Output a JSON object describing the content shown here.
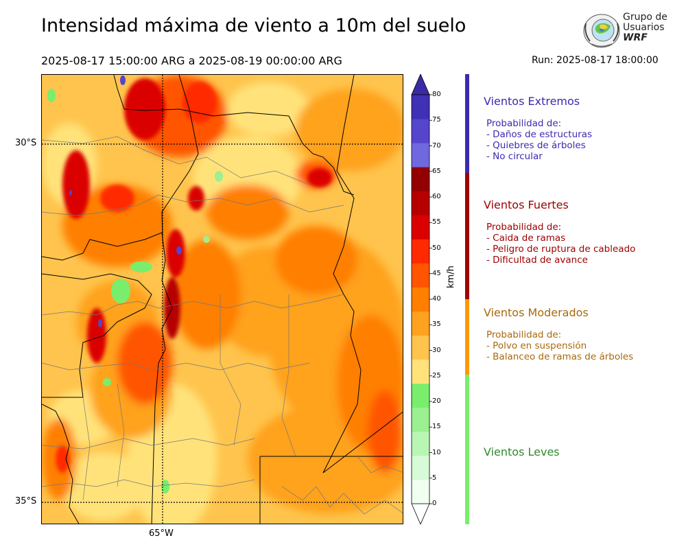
{
  "title": "Intensidad máxima de viento a 10m del suelo",
  "period": "2025-08-17 15:00:00 ARG  a  2025-08-19 00:00:00 ARG",
  "run": "Run: 2025-08-17 18:00:00",
  "logo": {
    "line1": "Grupo de",
    "line2": "Usuarios",
    "line3": "WRF"
  },
  "map": {
    "lat_labels": [
      "30°S",
      "35°S"
    ],
    "lon_labels": [
      "65°W"
    ],
    "ocean_color": "#ffffff"
  },
  "colorbar": {
    "unit": "km/h",
    "ticks": [
      "0",
      "5",
      "10",
      "15",
      "20",
      "25",
      "30",
      "35",
      "40",
      "45",
      "50",
      "55",
      "60",
      "65",
      "70",
      "75",
      "80"
    ],
    "colors": [
      "#f0fff0",
      "#d7fad7",
      "#b9f6b4",
      "#9bf090",
      "#79ee6c",
      "#ffe37a",
      "#ffc44d",
      "#ffa21f",
      "#ff7f00",
      "#ff5500",
      "#ff2a00",
      "#db0000",
      "#b60000",
      "#930000",
      "#7068df",
      "#5544cc",
      "#4030b5"
    ],
    "extend_colors": {
      "low": "#ffffff",
      "high": "#3b2aa8"
    }
  },
  "categories": [
    {
      "title": "Vientos Extremos",
      "color": "#3b2ab0",
      "lines": [
        "Probabilidad de:",
        "- Daños de estructuras",
        "- Quiebres de árboles",
        "- No circular"
      ]
    },
    {
      "title": "Vientos Fuertes",
      "color": "#a00000",
      "lines": [
        "Probabilidad de:",
        "- Caida de ramas",
        "- Peligro de ruptura de cableado",
        "- Dificultad de avance"
      ]
    },
    {
      "title": "Vientos Moderados",
      "color": "#a9690a",
      "lines": [
        "Probabilidad de:",
        "- Polvo en suspensión",
        "- Balanceo de ramas de árboles"
      ]
    },
    {
      "title": "Vientos Leves",
      "color": "#2f8a2f",
      "lines": []
    }
  ],
  "category_bar_colors": [
    "#3b2ab0",
    "#a00000",
    "#ff9900",
    "#79ee6c"
  ]
}
